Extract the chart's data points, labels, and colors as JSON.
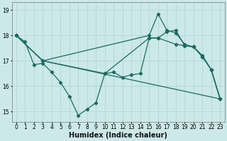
{
  "xlabel": "Humidex (Indice chaleur)",
  "xlim": [
    -0.5,
    23.5
  ],
  "ylim": [
    14.6,
    19.3
  ],
  "bg_color": "#cce8e8",
  "line_color": "#1a6b60",
  "grid_color": "#b8d8d8",
  "lines": [
    {
      "x": [
        0,
        1,
        2,
        3,
        4,
        5,
        6,
        7,
        8,
        9,
        10,
        11,
        12,
        13,
        14,
        15,
        16,
        17,
        18,
        19,
        20,
        21,
        22,
        23
      ],
      "y": [
        18.0,
        17.75,
        16.85,
        16.9,
        16.55,
        16.15,
        15.6,
        14.85,
        15.1,
        15.35,
        16.5,
        16.55,
        16.35,
        16.45,
        16.5,
        17.9,
        17.9,
        18.15,
        18.2,
        17.6,
        17.55,
        17.15,
        16.65,
        15.5
      ]
    },
    {
      "x": [
        0,
        3,
        15,
        16,
        17,
        18,
        19,
        20,
        21,
        22,
        23
      ],
      "y": [
        18.0,
        17.0,
        18.0,
        18.85,
        18.2,
        18.1,
        17.65,
        17.55,
        17.2,
        16.65,
        15.5
      ]
    },
    {
      "x": [
        0,
        3,
        10,
        15,
        16,
        18,
        19,
        20,
        21,
        22,
        23
      ],
      "y": [
        18.0,
        17.0,
        16.5,
        17.9,
        17.9,
        17.65,
        17.6,
        17.55,
        17.2,
        16.65,
        15.5
      ]
    },
    {
      "x": [
        0,
        3,
        23
      ],
      "y": [
        18.0,
        17.0,
        15.5
      ]
    }
  ],
  "xticks": [
    0,
    1,
    2,
    3,
    4,
    5,
    6,
    7,
    8,
    9,
    10,
    11,
    12,
    13,
    14,
    15,
    16,
    17,
    18,
    19,
    20,
    21,
    22,
    23
  ],
  "yticks": [
    15,
    16,
    17,
    18,
    19
  ],
  "tick_fontsize": 5.5,
  "label_fontsize": 7.0
}
